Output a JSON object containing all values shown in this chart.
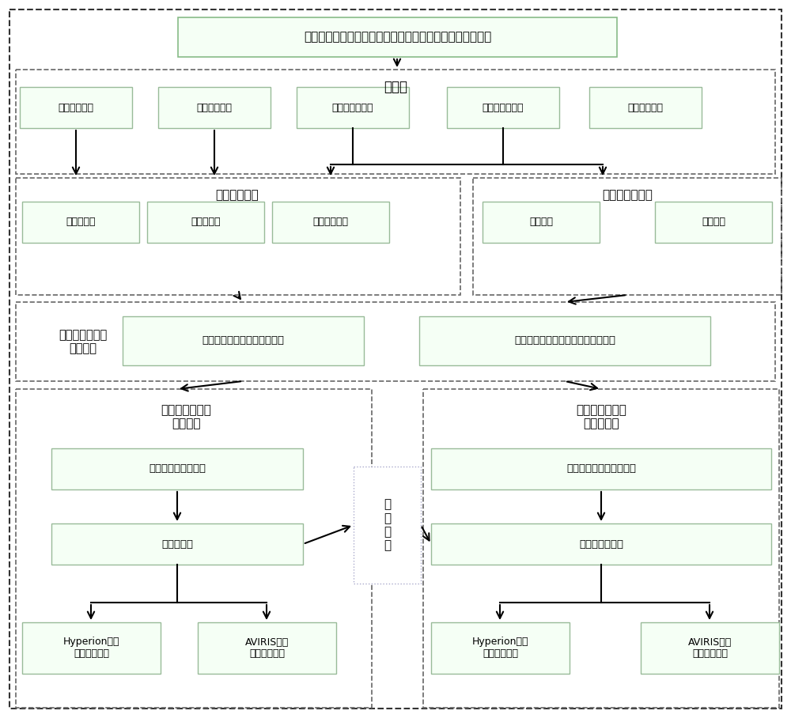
{
  "title": "多类型光谱特征参数协同的矿物类型遥感识别方法技术流程",
  "bg_color": "#ffffff",
  "section1_label": "数据源",
  "section1_boxes": [
    "矿物光谱数据",
    "背景光谱数据",
    "航空高光谱数据",
    "卫星高光谱数据",
    "地表验证数据"
  ],
  "section2a_label": "光谱数据处理",
  "section2a_boxes": [
    "归一化处理",
    "包络线去除",
    "一阶微分处理"
  ],
  "section2b_label": "遥感图像预处理",
  "section2b_boxes": [
    "辐射定标",
    "大气校正"
  ],
  "section3_label": "多类型光谱特征\n参数解算",
  "section3a_box": "地物光谱的光谱特征参数计算",
  "section3b_box": "高光谱遥感数据的光谱特征参数计算",
  "section4a_label": "监督分类法矿物\n类型识别",
  "section4a_box1": "多光谱特征参数选择",
  "section4a_box2": "监督分类法",
  "section4a_box3": "Hyperion数据\n矿物类型识别",
  "section4a_box4": "AVIRIS数据\n矿物类型识别",
  "section4b_label": "决策树分类法矿\n物类型识别",
  "section4b_box1": "矿物、背景光谱特征分析",
  "section4b_box2": "构建决策树模型",
  "section4b_box3": "Hyperion数据\n矿物类型识别",
  "section4b_box4": "AVIRIS数据\n矿物类型识别",
  "center_box": "精\n度\n验\n证",
  "outer_dash_color": "#333333",
  "section_dash_color": "#666666",
  "box_fill": "#f5fff5",
  "box_edge_green": "#99bb99",
  "box_edge_dotted": "#aaaacc",
  "arrow_color": "#000000"
}
